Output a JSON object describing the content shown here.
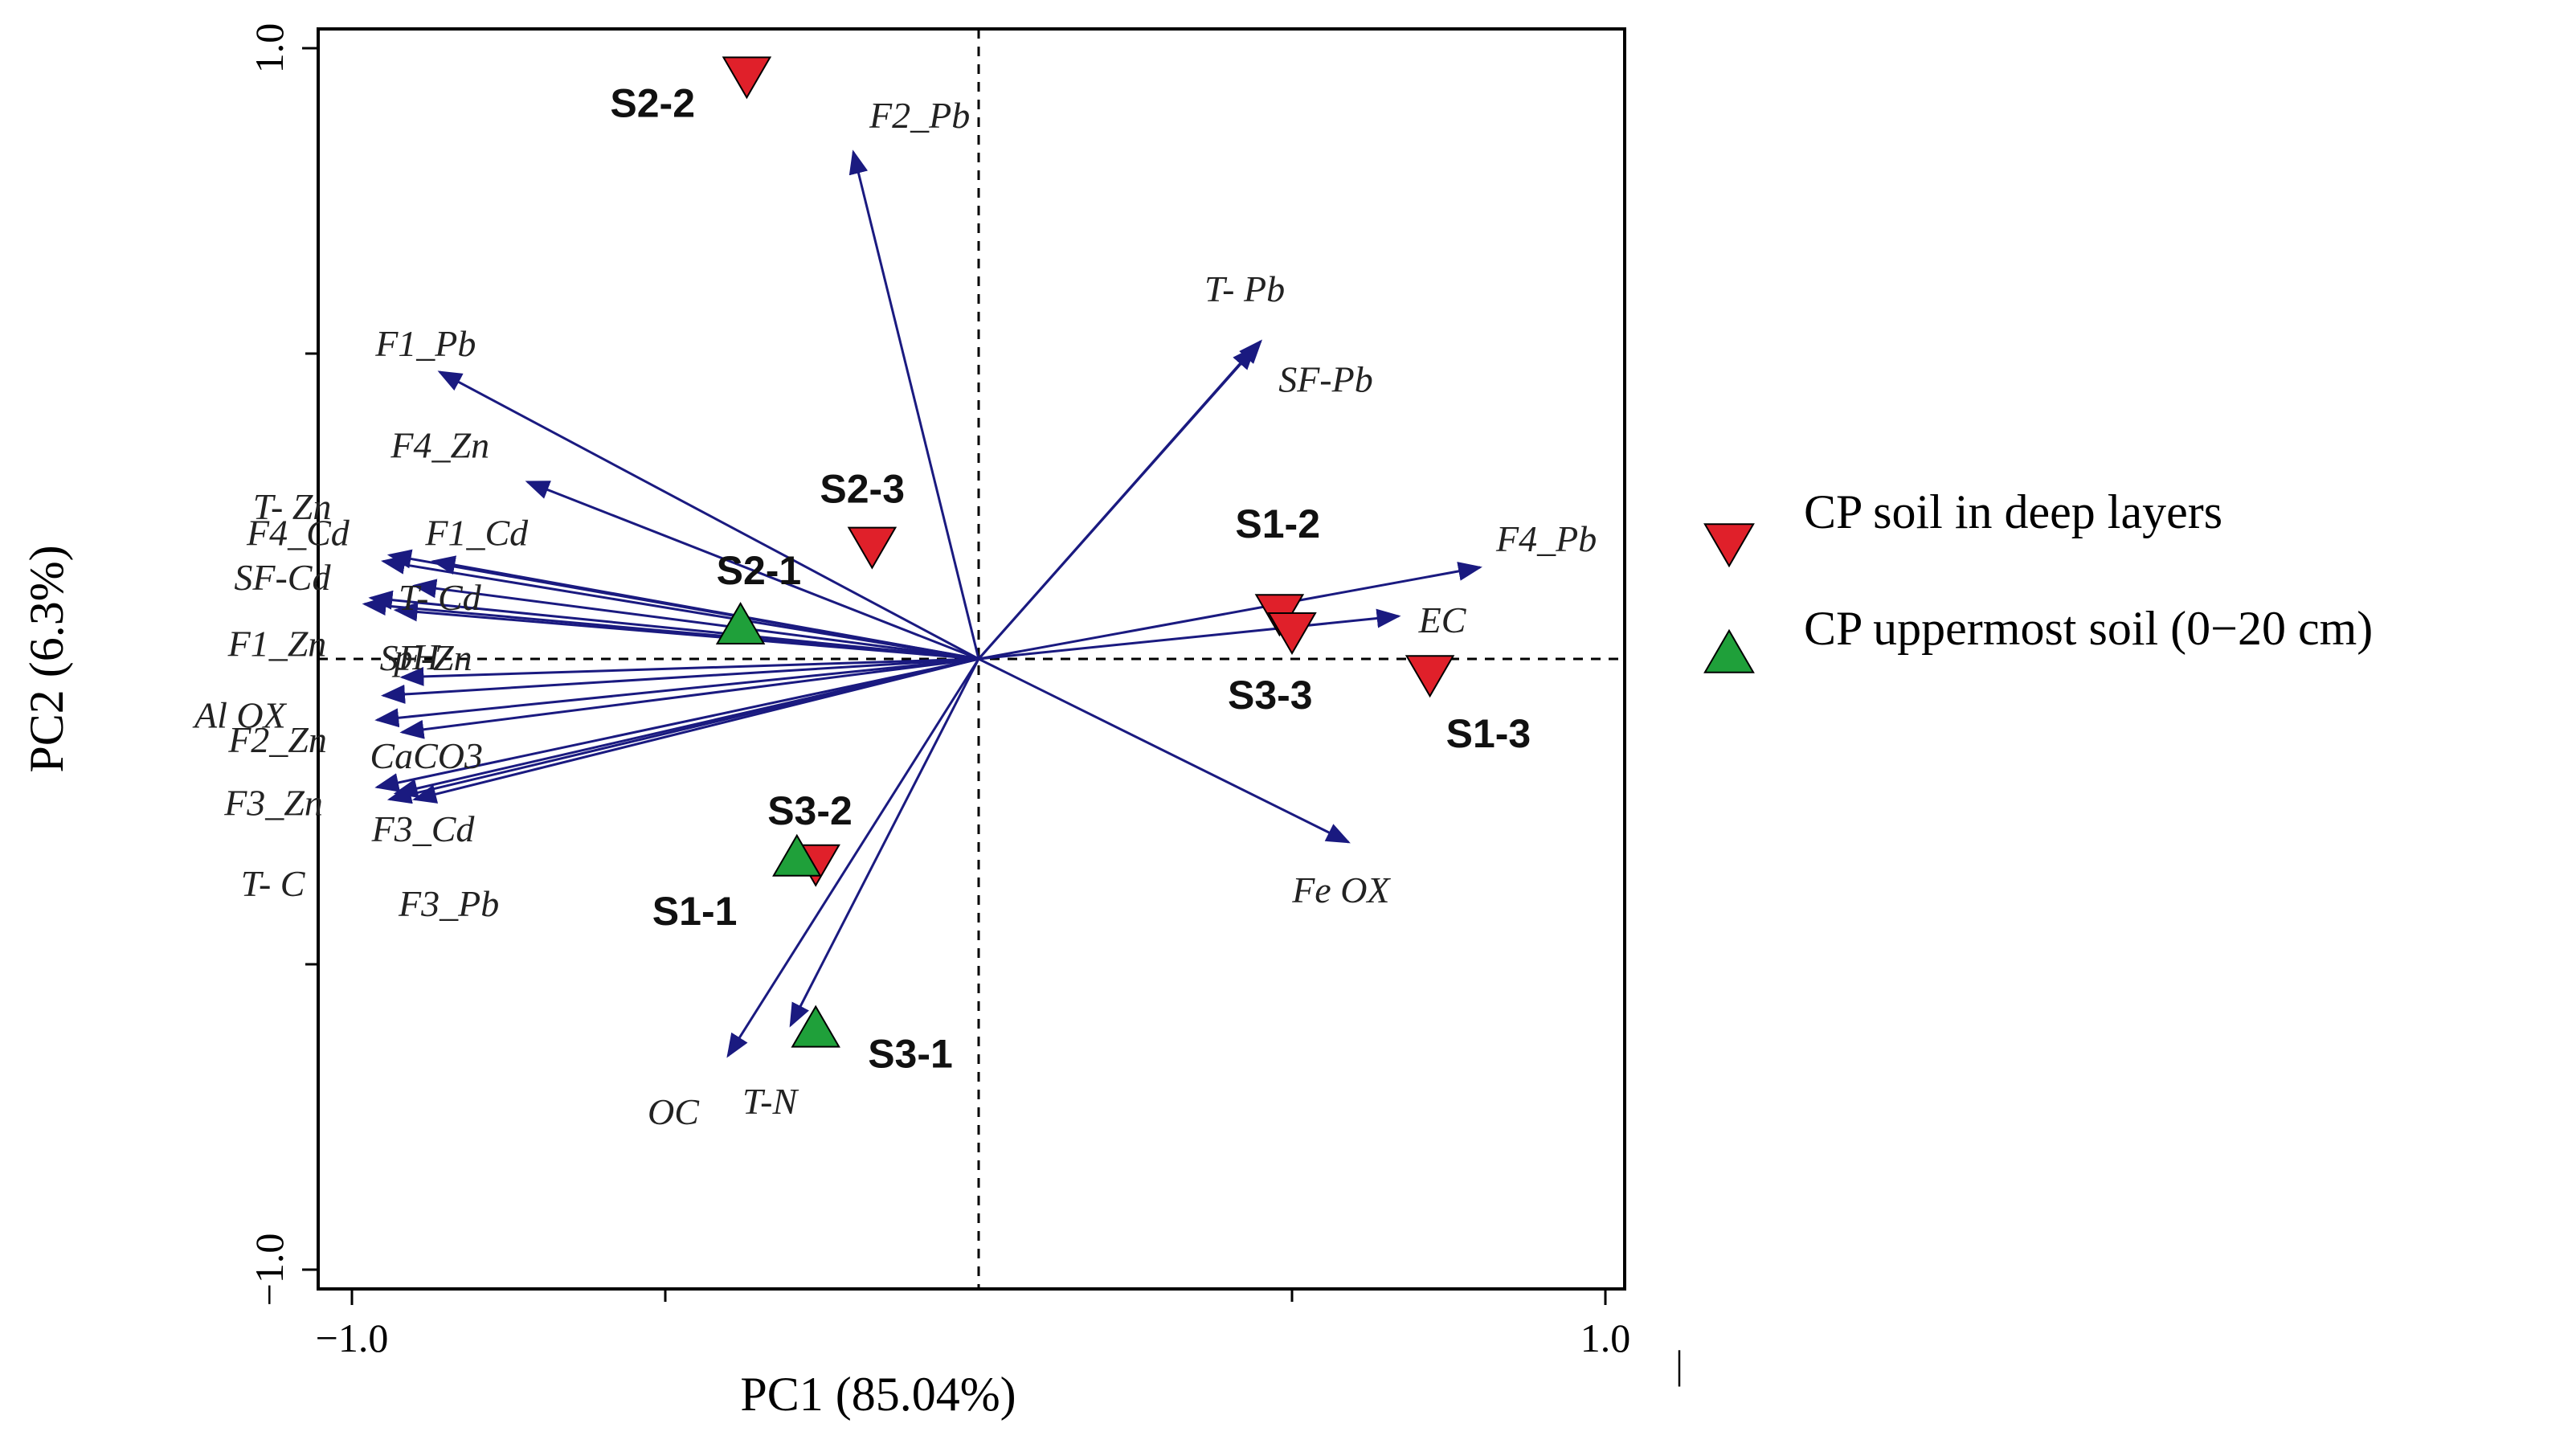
{
  "chart_data": {
    "type": "scatter",
    "subtype": "pca-biplot",
    "xlabel": "PC1 (85.04%)",
    "ylabel": "PC2 (6.3%)",
    "xlim": [
      -1.0,
      1.0
    ],
    "ylim": [
      -1.0,
      1.0
    ],
    "x_ticks": [
      {
        "value": -1.0,
        "label": "−1.0"
      },
      {
        "value": 1.0,
        "label": "1.0"
      }
    ],
    "y_ticks": [
      {
        "value": 1.0,
        "label": "1.0"
      },
      {
        "value": -1.0,
        "label": "−1.0"
      }
    ],
    "colors": {
      "arrow": "#1a1a80",
      "deep": "#e0202a",
      "upper": "#1fa03a"
    },
    "loadings": [
      {
        "name": "F2_Pb",
        "x": -0.2,
        "y": 0.83
      },
      {
        "name": "T- Pb",
        "x": 0.45,
        "y": 0.52
      },
      {
        "name": "SF-Pb",
        "x": 0.44,
        "y": 0.51
      },
      {
        "name": "F4_Pb",
        "x": 0.8,
        "y": 0.15
      },
      {
        "name": "EC",
        "x": 0.67,
        "y": 0.07
      },
      {
        "name": "Fe OX",
        "x": 0.59,
        "y": -0.3
      },
      {
        "name": "F1_Pb",
        "x": -0.86,
        "y": 0.47
      },
      {
        "name": "F4_Zn",
        "x": -0.72,
        "y": 0.29
      },
      {
        "name": "T- Zn",
        "x": -0.94,
        "y": 0.17
      },
      {
        "name": "F4_Cd",
        "x": -0.95,
        "y": 0.16
      },
      {
        "name": "F1_Cd",
        "x": -0.87,
        "y": 0.16
      },
      {
        "name": "SF-Cd",
        "x": -0.97,
        "y": 0.1
      },
      {
        "name": "T- Cd",
        "x": -0.9,
        "y": 0.12
      },
      {
        "name": "F1_Zn",
        "x": -0.98,
        "y": 0.09
      },
      {
        "name": "SF-Zn",
        "x": -0.93,
        "y": 0.08
      },
      {
        "name": "pH",
        "x": -0.92,
        "y": -0.03
      },
      {
        "name": "Al OX",
        "x": -0.95,
        "y": -0.06
      },
      {
        "name": "F2_Zn",
        "x": -0.96,
        "y": -0.1
      },
      {
        "name": "CaCO3",
        "x": -0.92,
        "y": -0.12
      },
      {
        "name": "F3_Zn",
        "x": -0.96,
        "y": -0.21
      },
      {
        "name": "F3_Cd",
        "x": -0.93,
        "y": -0.22
      },
      {
        "name": "T- C",
        "x": -0.94,
        "y": -0.23
      },
      {
        "name": "F3_Pb",
        "x": -0.9,
        "y": -0.23
      },
      {
        "name": "OC",
        "x": -0.4,
        "y": -0.65
      },
      {
        "name": "T-N",
        "x": -0.3,
        "y": -0.6
      }
    ],
    "samples": [
      {
        "name": "S2-2",
        "x": -0.37,
        "y": 0.96,
        "group": "deep"
      },
      {
        "name": "S2-3",
        "x": -0.17,
        "y": 0.19,
        "group": "deep"
      },
      {
        "name": "S2-1",
        "x": -0.38,
        "y": 0.05,
        "group": "upper"
      },
      {
        "name": "S1-2",
        "x": 0.48,
        "y": 0.08,
        "group": "deep"
      },
      {
        "name": "S3-3",
        "x": 0.5,
        "y": 0.05,
        "group": "deep"
      },
      {
        "name": "S1-3",
        "x": 0.72,
        "y": -0.02,
        "group": "deep"
      },
      {
        "name": "S3-2",
        "x": -0.26,
        "y": -0.33,
        "group": "deep"
      },
      {
        "name": "S1-1",
        "x": -0.29,
        "y": -0.33,
        "group": "upper"
      },
      {
        "name": "S3-1",
        "x": -0.26,
        "y": -0.61,
        "group": "upper"
      }
    ],
    "legend": [
      {
        "group": "deep",
        "marker": "triangle-down",
        "label": "CP soil in deep layers"
      },
      {
        "group": "upper",
        "marker": "triangle-up",
        "label": "CP uppermost soil (0−20 cm)"
      }
    ],
    "extra_mark": "|"
  }
}
